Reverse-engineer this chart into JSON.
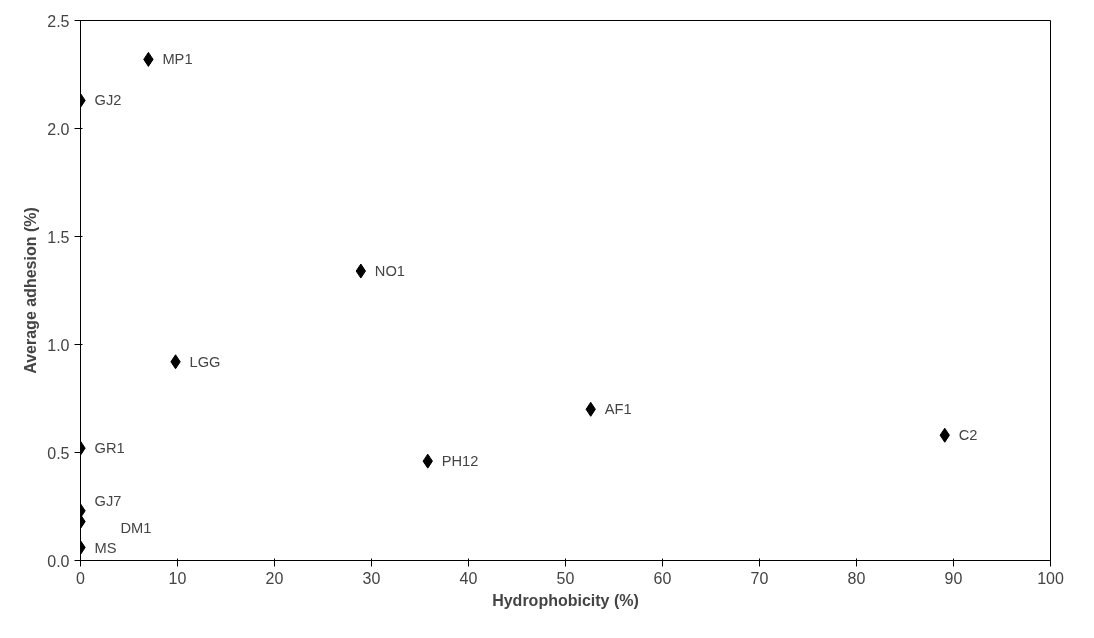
{
  "chart_data": {
    "type": "scatter",
    "xlabel": "Hydrophobicity (%)",
    "ylabel": "Average adhesion (%)",
    "x": [
      7.0,
      0,
      28.9,
      9.8,
      52.6,
      89.1,
      0,
      35.8,
      0,
      0,
      0
    ],
    "series": [
      {
        "color": "#000000",
        "values": [
          2.32,
          2.13,
          1.34,
          0.92,
          0.7,
          0.58,
          0.52,
          0.46,
          0.23,
          0.18,
          0.06
        ]
      }
    ],
    "annotations": [
      {
        "text": "MP1",
        "x": 7.0,
        "y": 2.32
      },
      {
        "text": "GJ2",
        "x": 0,
        "y": 2.13
      },
      {
        "text": "NO1",
        "x": 28.9,
        "y": 1.34
      },
      {
        "text": "LGG",
        "x": 9.8,
        "y": 0.92
      },
      {
        "text": "AF1",
        "x": 52.6,
        "y": 0.7
      },
      {
        "text": "C2",
        "x": 89.1,
        "y": 0.58
      },
      {
        "text": "GR1",
        "x": 0,
        "y": 0.52
      },
      {
        "text": "PH12",
        "x": 35.8,
        "y": 0.46
      },
      {
        "text": "GJ7",
        "x": 0,
        "y": 0.23
      },
      {
        "text": "DM1",
        "x": 0,
        "y": 0.18
      },
      {
        "text": "MS",
        "x": 0,
        "y": 0.06
      }
    ],
    "xlim": [
      0,
      100
    ],
    "xticks": [
      0,
      10,
      20,
      30,
      40,
      50,
      60,
      70,
      80,
      90,
      100
    ],
    "ylim": [
      0,
      2.5
    ],
    "yticks": [
      {
        "value": 0,
        "label": "0.0"
      },
      0.5,
      {
        "value": 1,
        "label": "1.0"
      },
      1.5,
      {
        "value": 2,
        "label": "2.0"
      },
      2.5
    ],
    "marker": "diamond",
    "grid": false
  }
}
